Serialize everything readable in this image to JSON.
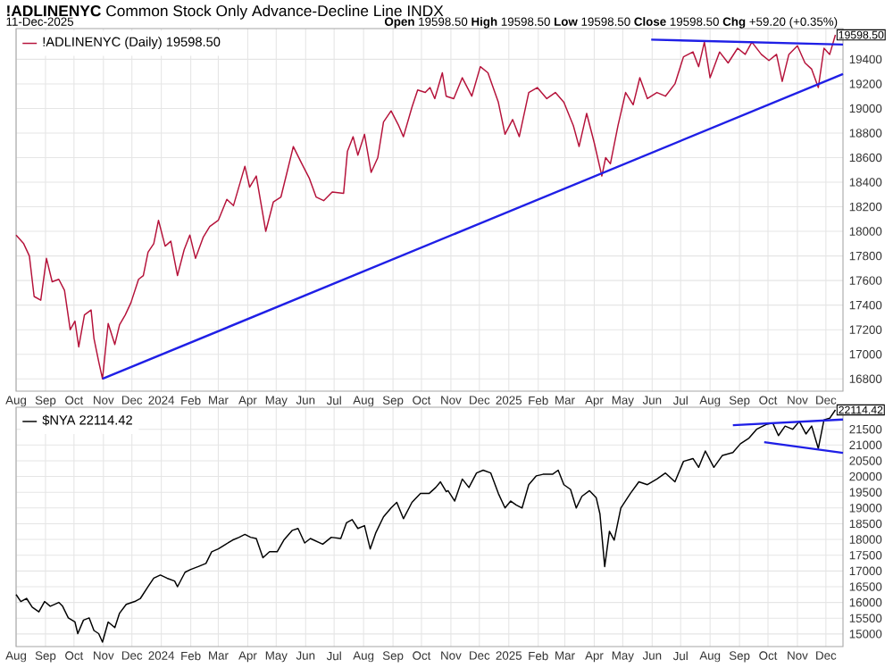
{
  "chart_data": [
    {
      "type": "line",
      "title": "**!ADLINENYC** Common Stock Only Advance-Decline Line INDX",
      "subtitle": "11-Dec-2025",
      "annotations": [
        "**Open** 19598.50 **High** 19598.50 **Low** 19598.50 **Close** 19598.50 **Chg** +59.20 (+0.35%)",
        {
          "text": "19598.50",
          "x": "2025-12-11",
          "y": 19598.5
        }
      ],
      "xlim": [
        "2023-08-01",
        "2025-12-19"
      ],
      "xticks": [
        {
          "value": "2023-08-01",
          "label": "Aug"
        },
        {
          "value": "2023-09-01",
          "label": "Sep"
        },
        {
          "value": "2023-10-01",
          "label": "Oct"
        },
        {
          "value": "2023-11-01",
          "label": "Nov"
        },
        {
          "value": "2023-12-01",
          "label": "Dec"
        },
        {
          "value": "2024-01-01",
          "label": "2024"
        },
        {
          "value": "2024-02-01",
          "label": "Feb"
        },
        {
          "value": "2024-03-01",
          "label": "Mar"
        },
        {
          "value": "2024-04-01",
          "label": "Apr"
        },
        {
          "value": "2024-05-01",
          "label": "May"
        },
        {
          "value": "2024-06-01",
          "label": "Jun"
        },
        {
          "value": "2024-07-01",
          "label": "Jul"
        },
        {
          "value": "2024-08-01",
          "label": "Aug"
        },
        {
          "value": "2024-09-01",
          "label": "Sep"
        },
        {
          "value": "2024-10-01",
          "label": "Oct"
        },
        {
          "value": "2024-11-01",
          "label": "Nov"
        },
        {
          "value": "2024-12-01",
          "label": "Dec"
        },
        {
          "value": "2025-01-01",
          "label": "2025"
        },
        {
          "value": "2025-02-01",
          "label": "Feb"
        },
        {
          "value": "2025-03-01",
          "label": "Mar"
        },
        {
          "value": "2025-04-01",
          "label": "Apr"
        },
        {
          "value": "2025-05-01",
          "label": "May"
        },
        {
          "value": "2025-06-01",
          "label": "Jun"
        },
        {
          "value": "2025-07-01",
          "label": "Jul"
        },
        {
          "value": "2025-08-01",
          "label": "Aug"
        },
        {
          "value": "2025-09-01",
          "label": "Sep"
        },
        {
          "value": "2025-10-01",
          "label": "Oct"
        },
        {
          "value": "2025-11-01",
          "label": "Nov"
        },
        {
          "value": "2025-12-01",
          "label": "Dec"
        }
      ],
      "ylim": [
        16700,
        19650
      ],
      "yticks": [
        16800,
        17000,
        17200,
        17400,
        17600,
        17800,
        18000,
        18200,
        18400,
        18600,
        18800,
        19000,
        19200,
        19400
      ],
      "grid": true,
      "legend": "top left",
      "series": [
        {
          "name": "!ADLINENYC (Daily) 19598.50",
          "color": "#b5123a",
          "x": [
            "2023-08-01",
            "2023-08-09",
            "2023-08-15",
            "2023-08-20",
            "2023-08-27",
            "2023-09-02",
            "2023-09-08",
            "2023-09-15",
            "2023-09-21",
            "2023-09-27",
            "2023-10-02",
            "2023-10-06",
            "2023-10-12",
            "2023-10-19",
            "2023-10-22",
            "2023-10-27",
            "2023-10-31",
            "2023-11-06",
            "2023-11-13",
            "2023-11-18",
            "2023-11-24",
            "2023-11-30",
            "2023-12-08",
            "2023-12-13",
            "2023-12-18",
            "2023-12-24",
            "2023-12-29",
            "2024-01-05",
            "2024-01-11",
            "2024-01-18",
            "2024-01-25",
            "2024-01-31",
            "2024-02-06",
            "2024-02-14",
            "2024-02-21",
            "2024-03-01",
            "2024-03-10",
            "2024-03-17",
            "2024-03-29",
            "2024-04-03",
            "2024-04-10",
            "2024-04-20",
            "2024-04-28",
            "2024-05-06",
            "2024-05-13",
            "2024-05-19",
            "2024-05-28",
            "2024-06-05",
            "2024-06-12",
            "2024-06-20",
            "2024-06-29",
            "2024-07-11",
            "2024-07-15",
            "2024-07-21",
            "2024-07-26",
            "2024-08-02",
            "2024-08-09",
            "2024-08-16",
            "2024-08-22",
            "2024-08-30",
            "2024-09-07",
            "2024-09-12",
            "2024-09-21",
            "2024-09-27",
            "2024-10-05",
            "2024-10-10",
            "2024-10-15",
            "2024-10-23",
            "2024-10-27",
            "2024-11-04",
            "2024-11-13",
            "2024-11-23",
            "2024-12-02",
            "2024-12-10",
            "2024-12-21",
            "2024-12-28",
            "2025-01-05",
            "2025-01-12",
            "2025-01-22",
            "2025-01-31",
            "2025-02-10",
            "2025-02-19",
            "2025-02-28",
            "2025-03-10",
            "2025-03-16",
            "2025-03-24",
            "2025-04-01",
            "2025-04-09",
            "2025-04-13",
            "2025-04-18",
            "2025-04-26",
            "2025-05-04",
            "2025-05-12",
            "2025-05-19",
            "2025-05-27",
            "2025-06-06",
            "2025-06-15",
            "2025-06-25",
            "2025-07-04",
            "2025-07-14",
            "2025-07-20",
            "2025-07-26",
            "2025-08-01",
            "2025-08-11",
            "2025-08-20",
            "2025-08-30",
            "2025-09-07",
            "2025-09-14",
            "2025-09-24",
            "2025-10-02",
            "2025-10-10",
            "2025-10-16",
            "2025-10-23",
            "2025-11-01",
            "2025-11-09",
            "2025-11-16",
            "2025-11-23",
            "2025-11-29",
            "2025-12-05",
            "2025-12-11"
          ],
          "values": [
            17970,
            17900,
            17800,
            17470,
            17440,
            17780,
            17590,
            17610,
            17520,
            17200,
            17270,
            17060,
            17320,
            17360,
            17130,
            16940,
            16800,
            17250,
            17080,
            17240,
            17320,
            17420,
            17610,
            17640,
            17830,
            17900,
            18090,
            17880,
            17920,
            17640,
            17850,
            17970,
            17780,
            17950,
            18040,
            18090,
            18260,
            18210,
            18530,
            18360,
            18450,
            18000,
            18240,
            18280,
            18500,
            18690,
            18550,
            18430,
            18280,
            18250,
            18320,
            18310,
            18650,
            18770,
            18620,
            18790,
            18480,
            18600,
            18890,
            18980,
            18860,
            18770,
            19010,
            19150,
            19130,
            19170,
            19080,
            19290,
            19100,
            19080,
            19250,
            19100,
            19340,
            19290,
            19050,
            18790,
            18910,
            18770,
            19130,
            19170,
            19080,
            19130,
            19050,
            18860,
            18690,
            18960,
            18720,
            18450,
            18600,
            18550,
            18860,
            19130,
            19030,
            19250,
            19080,
            19130,
            19100,
            19200,
            19420,
            19460,
            19340,
            19540,
            19250,
            19460,
            19370,
            19490,
            19440,
            19540,
            19440,
            19390,
            19440,
            19220,
            19440,
            19510,
            19370,
            19320,
            19170,
            19490,
            19440,
            19598.5
          ]
        },
        {
          "type": "line",
          "color": "#1f1fe6",
          "x": [
            "2023-10-31",
            "2025-12-19"
          ],
          "values": [
            16800,
            19280
          ]
        },
        {
          "type": "line",
          "color": "#1f1fe6",
          "x": [
            "2025-05-31",
            "2025-12-19"
          ],
          "values": [
            19560,
            19520
          ]
        }
      ]
    },
    {
      "type": "line",
      "annotations": [
        {
          "text": "22114.42",
          "x": "2025-12-11",
          "y": 22114.42
        }
      ],
      "xlim": [
        "2023-08-01",
        "2025-12-19"
      ],
      "xticks": [
        {
          "value": "2023-08-01",
          "label": "Aug"
        },
        {
          "value": "2023-09-01",
          "label": "Sep"
        },
        {
          "value": "2023-10-01",
          "label": "Oct"
        },
        {
          "value": "2023-11-01",
          "label": "Nov"
        },
        {
          "value": "2023-12-01",
          "label": "Dec"
        },
        {
          "value": "2024-01-01",
          "label": "2024"
        },
        {
          "value": "2024-02-01",
          "label": "Feb"
        },
        {
          "value": "2024-03-01",
          "label": "Mar"
        },
        {
          "value": "2024-04-01",
          "label": "Apr"
        },
        {
          "value": "2024-05-01",
          "label": "May"
        },
        {
          "value": "2024-06-01",
          "label": "Jun"
        },
        {
          "value": "2024-07-01",
          "label": "Jul"
        },
        {
          "value": "2024-08-01",
          "label": "Aug"
        },
        {
          "value": "2024-09-01",
          "label": "Sep"
        },
        {
          "value": "2024-10-01",
          "label": "Oct"
        },
        {
          "value": "2024-11-01",
          "label": "Nov"
        },
        {
          "value": "2024-12-01",
          "label": "Dec"
        },
        {
          "value": "2025-01-01",
          "label": "2025"
        },
        {
          "value": "2025-02-01",
          "label": "Feb"
        },
        {
          "value": "2025-03-01",
          "label": "Mar"
        },
        {
          "value": "2025-04-01",
          "label": "Apr"
        },
        {
          "value": "2025-05-01",
          "label": "May"
        },
        {
          "value": "2025-06-01",
          "label": "Jun"
        },
        {
          "value": "2025-07-01",
          "label": "Jul"
        },
        {
          "value": "2025-08-01",
          "label": "Aug"
        },
        {
          "value": "2025-09-01",
          "label": "Sep"
        },
        {
          "value": "2025-10-01",
          "label": "Oct"
        },
        {
          "value": "2025-11-01",
          "label": "Nov"
        },
        {
          "value": "2025-12-01",
          "label": "Dec"
        }
      ],
      "ylim": [
        14600,
        22200
      ],
      "yticks": [
        15000,
        15500,
        16000,
        16500,
        17000,
        17500,
        18000,
        18500,
        19000,
        19500,
        20000,
        20500,
        21000,
        21500
      ],
      "grid": true,
      "legend": "top left",
      "series": [
        {
          "name": "$NYA 22114.42",
          "color": "#000000",
          "x": [
            "2023-08-01",
            "2023-08-06",
            "2023-08-12",
            "2023-08-18",
            "2023-08-25",
            "2023-08-31",
            "2023-09-06",
            "2023-09-15",
            "2023-09-19",
            "2023-09-25",
            "2023-10-02",
            "2023-10-05",
            "2023-10-11",
            "2023-10-17",
            "2023-10-22",
            "2023-10-27",
            "2023-10-31",
            "2023-11-06",
            "2023-11-13",
            "2023-11-18",
            "2023-11-25",
            "2023-12-04",
            "2023-12-10",
            "2023-12-18",
            "2023-12-24",
            "2023-12-31",
            "2024-01-07",
            "2024-01-15",
            "2024-01-18",
            "2024-01-26",
            "2024-02-01",
            "2024-02-09",
            "2024-02-17",
            "2024-02-23",
            "2024-03-01",
            "2024-03-09",
            "2024-03-16",
            "2024-03-23",
            "2024-03-29",
            "2024-04-04",
            "2024-04-10",
            "2024-04-17",
            "2024-04-24",
            "2024-05-02",
            "2024-05-09",
            "2024-05-18",
            "2024-05-24",
            "2024-05-31",
            "2024-06-06",
            "2024-06-19",
            "2024-06-28",
            "2024-07-08",
            "2024-07-14",
            "2024-07-20",
            "2024-07-26",
            "2024-08-02",
            "2024-08-08",
            "2024-08-14",
            "2024-08-22",
            "2024-08-30",
            "2024-09-05",
            "2024-09-12",
            "2024-09-21",
            "2024-09-30",
            "2024-10-09",
            "2024-10-16",
            "2024-10-21",
            "2024-10-27",
            "2024-10-29",
            "2024-11-05",
            "2024-11-13",
            "2024-11-20",
            "2024-11-28",
            "2024-12-05",
            "2024-12-13",
            "2024-12-21",
            "2024-12-28",
            "2025-01-03",
            "2025-01-09",
            "2025-01-15",
            "2025-01-22",
            "2025-01-30",
            "2025-02-06",
            "2025-02-16",
            "2025-02-22",
            "2025-02-28",
            "2025-03-07",
            "2025-03-13",
            "2025-03-19",
            "2025-03-27",
            "2025-04-03",
            "2025-04-07",
            "2025-04-12",
            "2025-04-17",
            "2025-04-22",
            "2025-04-29",
            "2025-05-09",
            "2025-05-18",
            "2025-05-27",
            "2025-06-06",
            "2025-06-15",
            "2025-06-25",
            "2025-07-04",
            "2025-07-14",
            "2025-07-20",
            "2025-07-27",
            "2025-08-05",
            "2025-08-14",
            "2025-08-25",
            "2025-09-02",
            "2025-09-11",
            "2025-09-19",
            "2025-09-29",
            "2025-10-06",
            "2025-10-12",
            "2025-10-19",
            "2025-10-27",
            "2025-11-03",
            "2025-11-10",
            "2025-11-16",
            "2025-11-23",
            "2025-11-29",
            "2025-12-05",
            "2025-12-11"
          ],
          "values": [
            16250,
            16030,
            16130,
            15850,
            15700,
            16030,
            15880,
            16000,
            15880,
            15510,
            15380,
            15010,
            15440,
            15510,
            15110,
            15010,
            14740,
            15380,
            15200,
            15660,
            15940,
            16030,
            16130,
            16500,
            16770,
            16870,
            16770,
            16680,
            16500,
            16960,
            17050,
            17140,
            17240,
            17610,
            17700,
            17850,
            17980,
            18070,
            18160,
            18070,
            18030,
            17420,
            17610,
            17610,
            17980,
            18290,
            18350,
            17890,
            18030,
            17850,
            18070,
            18030,
            18530,
            18630,
            18350,
            18440,
            17700,
            18220,
            18720,
            19000,
            19180,
            18660,
            19180,
            19460,
            19460,
            19650,
            19830,
            19520,
            19550,
            19220,
            19920,
            19650,
            20110,
            20200,
            20110,
            19460,
            19000,
            19220,
            19090,
            19000,
            19740,
            20020,
            20070,
            20070,
            20200,
            19740,
            19590,
            19000,
            19370,
            19550,
            19330,
            18810,
            17140,
            18260,
            17980,
            19000,
            19460,
            19830,
            19740,
            19920,
            20110,
            19830,
            20480,
            20570,
            20290,
            20810,
            20290,
            20670,
            20760,
            21040,
            21220,
            21500,
            21650,
            21700,
            21300,
            21600,
            21500,
            21750,
            21350,
            21600,
            20890,
            21800,
            21850,
            22114.42
          ]
        },
        {
          "type": "line",
          "color": "#1f1fe6",
          "x": [
            "2025-08-25",
            "2025-12-19"
          ],
          "values": [
            21630,
            21810
          ]
        },
        {
          "type": "line",
          "color": "#1f1fe6",
          "x": [
            "2025-09-27",
            "2025-12-19"
          ],
          "values": [
            21090,
            20750
          ]
        }
      ]
    }
  ]
}
